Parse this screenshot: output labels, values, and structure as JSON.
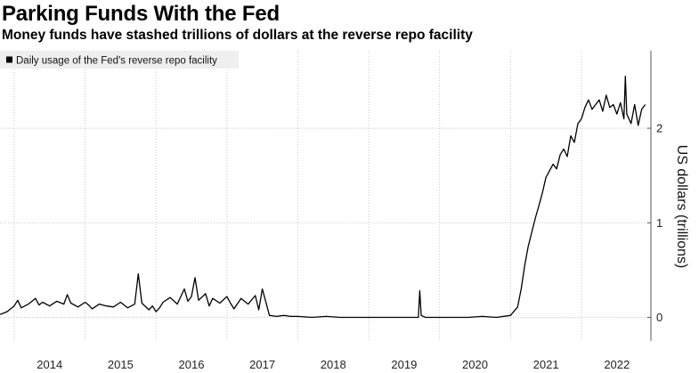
{
  "header": {
    "title": "Parking Funds With the Fed",
    "subtitle": "Money funds have stashed trillions of dollars at the reverse repo facility"
  },
  "chart_data": {
    "type": "line",
    "title": "Parking Funds With the Fed",
    "subtitle": "Money funds have stashed trillions of dollars at the reverse repo facility",
    "xlabel": "",
    "ylabel": "US dollars (trillions)",
    "ylim": [
      -0.25,
      2.82
    ],
    "xlim": [
      2013.8,
      2022.98
    ],
    "grid": true,
    "legend_position": "top-left",
    "x_ticks": [
      {
        "label": "2014",
        "value": 2014.5
      },
      {
        "label": "2015",
        "value": 2015.5
      },
      {
        "label": "2016",
        "value": 2016.5
      },
      {
        "label": "2017",
        "value": 2017.5
      },
      {
        "label": "2018",
        "value": 2018.5
      },
      {
        "label": "2019",
        "value": 2019.5
      },
      {
        "label": "2020",
        "value": 2020.5
      },
      {
        "label": "2021",
        "value": 2021.5
      },
      {
        "label": "2022",
        "value": 2022.5
      }
    ],
    "y_ticks": [
      {
        "label": "0",
        "value": 0
      },
      {
        "label": "1",
        "value": 1
      },
      {
        "label": "2",
        "value": 2
      }
    ],
    "series": [
      {
        "name": "Daily usage of the Fed's reverse repo facility",
        "color": "#000000",
        "x": [
          2013.8,
          2013.9,
          2014.0,
          2014.05,
          2014.1,
          2014.2,
          2014.3,
          2014.35,
          2014.4,
          2014.5,
          2014.6,
          2014.7,
          2014.75,
          2014.8,
          2014.9,
          2015.0,
          2015.05,
          2015.1,
          2015.2,
          2015.3,
          2015.4,
          2015.5,
          2015.6,
          2015.7,
          2015.75,
          2015.8,
          2015.9,
          2015.95,
          2016.0,
          2016.05,
          2016.1,
          2016.2,
          2016.3,
          2016.4,
          2016.45,
          2016.5,
          2016.55,
          2016.6,
          2016.7,
          2016.75,
          2016.8,
          2016.9,
          2017.0,
          2017.05,
          2017.1,
          2017.2,
          2017.3,
          2017.4,
          2017.45,
          2017.5,
          2017.6,
          2017.7,
          2017.8,
          2017.9,
          2018.0,
          2018.2,
          2018.4,
          2018.6,
          2018.8,
          2019.0,
          2019.2,
          2019.4,
          2019.6,
          2019.7,
          2019.72,
          2019.74,
          2019.8,
          2020.0,
          2020.2,
          2020.4,
          2020.6,
          2020.8,
          2021.0,
          2021.1,
          2021.15,
          2021.2,
          2021.25,
          2021.3,
          2021.35,
          2021.4,
          2021.45,
          2021.5,
          2021.55,
          2021.6,
          2021.65,
          2021.7,
          2021.75,
          2021.8,
          2021.85,
          2021.9,
          2021.95,
          2022.0,
          2022.05,
          2022.1,
          2022.15,
          2022.2,
          2022.25,
          2022.3,
          2022.35,
          2022.4,
          2022.45,
          2022.5,
          2022.55,
          2022.6,
          2022.62,
          2022.64,
          2022.7,
          2022.75,
          2022.8,
          2022.85,
          2022.9
        ],
        "values": [
          0.03,
          0.06,
          0.12,
          0.18,
          0.1,
          0.14,
          0.2,
          0.13,
          0.16,
          0.12,
          0.17,
          0.14,
          0.24,
          0.15,
          0.11,
          0.16,
          0.13,
          0.09,
          0.14,
          0.12,
          0.11,
          0.16,
          0.1,
          0.14,
          0.46,
          0.15,
          0.08,
          0.12,
          0.06,
          0.1,
          0.16,
          0.21,
          0.14,
          0.3,
          0.17,
          0.22,
          0.42,
          0.18,
          0.25,
          0.12,
          0.2,
          0.15,
          0.22,
          0.15,
          0.09,
          0.2,
          0.14,
          0.23,
          0.08,
          0.3,
          0.02,
          0.01,
          0.02,
          0.01,
          0.01,
          0.0,
          0.01,
          0.0,
          0.0,
          0.0,
          0.0,
          0.0,
          0.0,
          0.0,
          0.28,
          0.02,
          0.0,
          0.0,
          0.0,
          0.0,
          0.01,
          0.0,
          0.02,
          0.11,
          0.3,
          0.55,
          0.75,
          0.9,
          1.05,
          1.18,
          1.32,
          1.48,
          1.55,
          1.62,
          1.57,
          1.72,
          1.78,
          1.7,
          1.92,
          1.85,
          2.05,
          2.1,
          2.22,
          2.3,
          2.2,
          2.25,
          2.3,
          2.18,
          2.35,
          2.22,
          2.25,
          2.15,
          2.27,
          2.1,
          2.55,
          2.15,
          2.05,
          2.25,
          2.03,
          2.2,
          2.25
        ]
      }
    ]
  }
}
